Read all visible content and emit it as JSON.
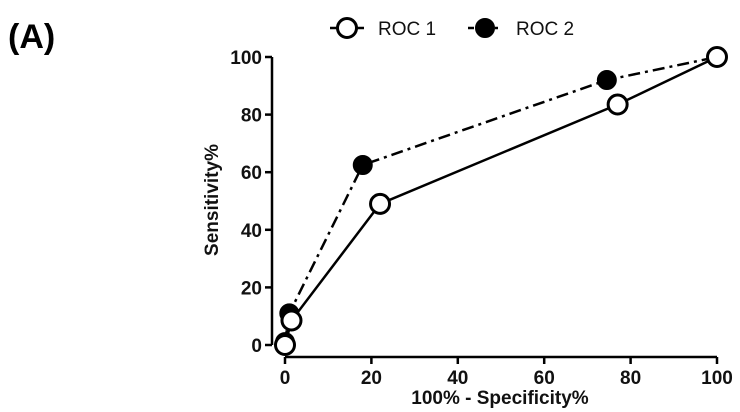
{
  "panel_label": "(A)",
  "chart_data": {
    "type": "line",
    "title": "",
    "xlabel": "100% - Specificity%",
    "ylabel": "Sensitivity%",
    "xlim": [
      0,
      100
    ],
    "ylim": [
      0,
      100
    ],
    "x_ticks": [
      0,
      20,
      40,
      60,
      80,
      100
    ],
    "y_ticks": [
      0,
      20,
      40,
      60,
      80,
      100
    ],
    "grid": false,
    "legend_position": "top",
    "series": [
      {
        "name": "ROC 1",
        "line_style": "solid",
        "marker": "open-circle",
        "color": "#000000",
        "points": [
          {
            "x": 0,
            "y": 0
          },
          {
            "x": 1.5,
            "y": 8.5
          },
          {
            "x": 22,
            "y": 49
          },
          {
            "x": 77,
            "y": 83.5
          },
          {
            "x": 100,
            "y": 100
          }
        ]
      },
      {
        "name": "ROC 2",
        "line_style": "dash-dot",
        "marker": "filled-circle",
        "color": "#000000",
        "points": [
          {
            "x": 0,
            "y": 1
          },
          {
            "x": 1,
            "y": 11
          },
          {
            "x": 18,
            "y": 62.5
          },
          {
            "x": 74.5,
            "y": 92
          },
          {
            "x": 100,
            "y": 100
          }
        ]
      }
    ]
  }
}
